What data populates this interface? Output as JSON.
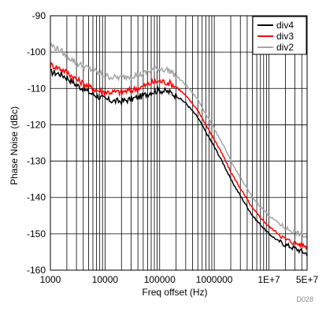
{
  "figure_id": "D028",
  "chart_data": {
    "type": "line",
    "title": "",
    "xlabel": "Freq offset (Hz)",
    "ylabel": "Phase Noise (dBc)",
    "x_scale": "log",
    "xlim": [
      1000,
      50000000
    ],
    "ylim": [
      -160,
      -90
    ],
    "grid": true,
    "legend_position": "top-right",
    "x_ticks": [
      1000,
      10000,
      100000,
      1000000,
      10000000,
      50000000
    ],
    "x_tick_labels": [
      "1000",
      "10000",
      "100000",
      "1000000",
      "1E+7",
      "5E+7"
    ],
    "y_ticks": [
      -160,
      -150,
      -140,
      -130,
      -120,
      -110,
      -100,
      -90
    ],
    "y_tick_labels": [
      "-160",
      "-150",
      "-140",
      "-130",
      "-120",
      "-110",
      "-100",
      "-90"
    ],
    "series": [
      {
        "name": "div4",
        "color": "#000000",
        "x": [
          1000,
          1500,
          2000,
          3000,
          5000,
          7000,
          10000,
          15000,
          20000,
          30000,
          50000,
          70000,
          100000,
          150000,
          200000,
          300000,
          500000,
          700000,
          1000000,
          1500000,
          2000000,
          3000000,
          5000000,
          7000000,
          10000000,
          15000000,
          20000000,
          30000000,
          50000000
        ],
        "y": [
          -105.5,
          -106,
          -107,
          -109,
          -111,
          -112,
          -113,
          -113.5,
          -113.5,
          -113,
          -112,
          -111,
          -110.5,
          -111,
          -112,
          -114,
          -118,
          -122,
          -126,
          -131,
          -135,
          -139.5,
          -145,
          -147.5,
          -150,
          -152,
          -153,
          -154,
          -155.5
        ]
      },
      {
        "name": "div3",
        "color": "#ff0000",
        "x": [
          1000,
          1500,
          2000,
          3000,
          5000,
          7000,
          10000,
          15000,
          20000,
          30000,
          50000,
          70000,
          100000,
          150000,
          200000,
          300000,
          500000,
          700000,
          1000000,
          1500000,
          2000000,
          3000000,
          5000000,
          7000000,
          10000000,
          15000000,
          20000000,
          30000000,
          50000000
        ],
        "y": [
          -103.5,
          -104.5,
          -105.5,
          -107.5,
          -109.5,
          -110.5,
          -111,
          -111,
          -111,
          -110.5,
          -109.5,
          -108.5,
          -108,
          -108.5,
          -109.5,
          -112,
          -116,
          -120,
          -124,
          -129,
          -133,
          -137.5,
          -143,
          -145.5,
          -148,
          -150,
          -151.5,
          -152.5,
          -153.5
        ]
      },
      {
        "name": "div2",
        "color": "#a6a6a6",
        "x": [
          1000,
          1500,
          2000,
          3000,
          5000,
          7000,
          10000,
          15000,
          20000,
          30000,
          50000,
          70000,
          100000,
          150000,
          200000,
          300000,
          500000,
          700000,
          1000000,
          1500000,
          2000000,
          3000000,
          5000000,
          7000000,
          10000000,
          15000000,
          20000000,
          30000000,
          50000000
        ],
        "y": [
          -98,
          -99.5,
          -101,
          -103,
          -104.5,
          -105.5,
          -106.5,
          -107,
          -107,
          -106.5,
          -106,
          -105,
          -104.5,
          -105,
          -106.5,
          -109,
          -113,
          -117,
          -121,
          -126,
          -130,
          -134.5,
          -140,
          -142.5,
          -145,
          -147,
          -148.5,
          -149.5,
          -151
        ]
      }
    ]
  }
}
